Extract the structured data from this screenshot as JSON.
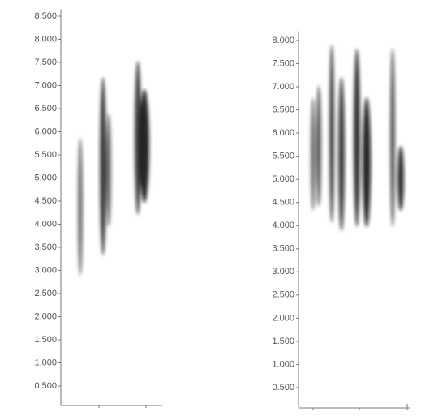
{
  "chart_data": [
    {
      "type": "spectrogram",
      "ylim": [
        0,
        8.65
      ],
      "yticks": [
        {
          "value": 0.5,
          "label": "0.500"
        },
        {
          "value": 1,
          "label": "1.000"
        },
        {
          "value": 1.5,
          "label": "1.500"
        },
        {
          "value": 2,
          "label": "2.000"
        },
        {
          "value": 2.5,
          "label": "2.500"
        },
        {
          "value": 3,
          "label": "3.000"
        },
        {
          "value": 3.5,
          "label": "3.500"
        },
        {
          "value": 4,
          "label": "4.000"
        },
        {
          "value": 4.5,
          "label": "4.500"
        },
        {
          "value": 5,
          "label": "5.000"
        },
        {
          "value": 5.5,
          "label": "5.500"
        },
        {
          "value": 6,
          "label": "6.000"
        },
        {
          "value": 6.5,
          "label": "6.500"
        },
        {
          "value": 7,
          "label": "7.000"
        },
        {
          "value": 7.5,
          "label": "7.500"
        },
        {
          "value": 8,
          "label": "8.000"
        },
        {
          "value": 8.5,
          "label": "8.500"
        }
      ]
    },
    {
      "type": "spectrogram",
      "ylim": [
        0,
        8.2
      ],
      "yticks": [
        {
          "value": 0.5,
          "label": "0.500"
        },
        {
          "value": 1,
          "label": "1.000"
        },
        {
          "value": 1.5,
          "label": "1.500"
        },
        {
          "value": 2,
          "label": "2.000"
        },
        {
          "value": 2.5,
          "label": "2.500"
        },
        {
          "value": 3,
          "label": "3.000"
        },
        {
          "value": 3.5,
          "label": "3.500"
        },
        {
          "value": 4,
          "label": "4.000"
        },
        {
          "value": 4.5,
          "label": "4.500"
        },
        {
          "value": 5,
          "label": "5.000"
        },
        {
          "value": 5.5,
          "label": "5.500"
        },
        {
          "value": 6,
          "label": "6.000"
        },
        {
          "value": 6.5,
          "label": "6.500"
        },
        {
          "value": 7,
          "label": "7.000"
        },
        {
          "value": 7.5,
          "label": "7.500"
        },
        {
          "value": 8,
          "label": "8.000"
        }
      ]
    }
  ]
}
